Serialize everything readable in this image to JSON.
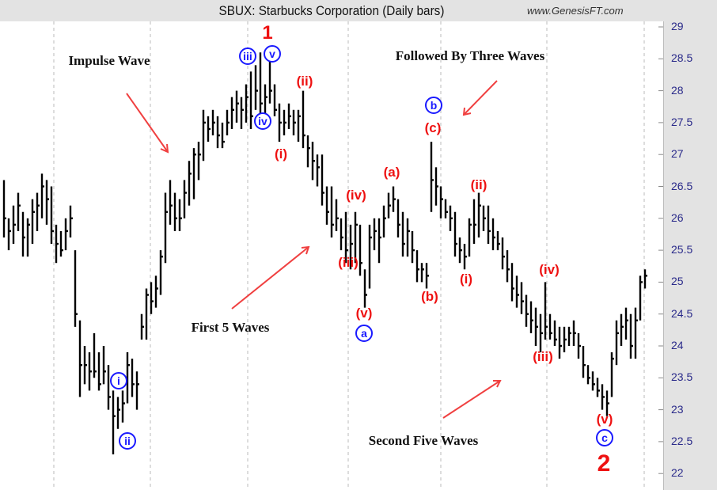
{
  "header": {
    "title": "SBUX:  Starbucks Corporation  (Daily bars)",
    "watermark": "www.GenesisFT.com"
  },
  "chart_data": {
    "type": "bar",
    "style": "high-low-close bars",
    "title": "SBUX:  Starbucks Corporation  (Daily bars)",
    "ylim": [
      22,
      29
    ],
    "yticks": [
      "29",
      "28.5",
      "28",
      "27.5",
      "27",
      "26.5",
      "26",
      "25.5",
      "25",
      "24.5",
      "24",
      "23.5",
      "23",
      "22.5",
      "22"
    ],
    "grid": "vertical dashed",
    "bars": [
      [
        26.6,
        25.7,
        26.0
      ],
      [
        26.0,
        25.5,
        25.8
      ],
      [
        26.2,
        25.6,
        25.9
      ],
      [
        26.4,
        25.8,
        26.2
      ],
      [
        26.1,
        25.4,
        25.7
      ],
      [
        26.0,
        25.4,
        25.9
      ],
      [
        26.3,
        25.6,
        26.1
      ],
      [
        26.4,
        25.8,
        26.2
      ],
      [
        26.7,
        26.0,
        26.5
      ],
      [
        26.6,
        25.9,
        26.3
      ],
      [
        26.5,
        25.6,
        25.8
      ],
      [
        25.9,
        25.3,
        25.6
      ],
      [
        25.8,
        25.4,
        25.5
      ],
      [
        26.0,
        25.5,
        25.8
      ],
      [
        26.2,
        25.7,
        26.0
      ],
      [
        25.5,
        24.3,
        24.5
      ],
      [
        24.4,
        23.2,
        23.7
      ],
      [
        24.0,
        23.4,
        23.7
      ],
      [
        23.9,
        23.3,
        23.6
      ],
      [
        24.2,
        23.5,
        23.6
      ],
      [
        23.9,
        23.3,
        23.4
      ],
      [
        24.0,
        23.4,
        23.6
      ],
      [
        23.7,
        23.0,
        23.2
      ],
      [
        23.3,
        22.3,
        22.9
      ],
      [
        23.2,
        22.7,
        23.0
      ],
      [
        23.3,
        22.8,
        23.1
      ],
      [
        23.9,
        23.1,
        23.7
      ],
      [
        23.8,
        23.2,
        23.4
      ],
      [
        23.6,
        23.0,
        23.4
      ],
      [
        24.5,
        24.1,
        24.3
      ],
      [
        24.9,
        24.1,
        24.8
      ],
      [
        25.0,
        24.5,
        24.7
      ],
      [
        25.1,
        24.6,
        24.9
      ],
      [
        25.5,
        24.8,
        25.4
      ],
      [
        26.4,
        25.3,
        26.1
      ],
      [
        26.6,
        25.9,
        26.2
      ],
      [
        26.4,
        25.8,
        26.0
      ],
      [
        26.3,
        25.8,
        26.0
      ],
      [
        26.6,
        26.0,
        26.4
      ],
      [
        26.9,
        26.2,
        26.7
      ],
      [
        27.1,
        26.3,
        27.0
      ],
      [
        27.2,
        26.6,
        27.0
      ],
      [
        27.7,
        26.9,
        27.5
      ],
      [
        27.6,
        27.2,
        27.4
      ],
      [
        27.7,
        27.3,
        27.5
      ],
      [
        27.6,
        27.1,
        27.3
      ],
      [
        27.5,
        27.1,
        27.2
      ],
      [
        27.7,
        27.3,
        27.5
      ],
      [
        27.9,
        27.4,
        27.7
      ],
      [
        28.0,
        27.5,
        27.8
      ],
      [
        27.9,
        27.4,
        27.7
      ],
      [
        28.1,
        27.5,
        27.9
      ],
      [
        28.3,
        27.4,
        27.6
      ],
      [
        28.4,
        27.7,
        28.0
      ],
      [
        28.6,
        27.5,
        27.8
      ],
      [
        28.1,
        27.6,
        27.9
      ],
      [
        28.5,
        27.8,
        28.0
      ],
      [
        28.1,
        27.6,
        27.7
      ],
      [
        27.8,
        27.2,
        27.5
      ],
      [
        27.7,
        27.3,
        27.5
      ],
      [
        27.8,
        27.4,
        27.6
      ],
      [
        27.7,
        27.3,
        27.5
      ],
      [
        27.7,
        27.2,
        27.6
      ],
      [
        28.0,
        27.1,
        27.3
      ],
      [
        27.3,
        26.8,
        27.1
      ],
      [
        27.2,
        26.6,
        26.9
      ],
      [
        27.0,
        26.5,
        26.8
      ],
      [
        27.0,
        26.2,
        26.4
      ],
      [
        26.5,
        25.9,
        26.1
      ],
      [
        26.5,
        25.7,
        25.9
      ],
      [
        26.3,
        25.8,
        26.0
      ],
      [
        26.0,
        25.5,
        25.7
      ],
      [
        26.1,
        25.3,
        25.5
      ],
      [
        25.9,
        25.2,
        25.6
      ],
      [
        26.1,
        25.3,
        25.9
      ],
      [
        25.9,
        25.1,
        25.3
      ],
      [
        25.2,
        24.6,
        24.8
      ],
      [
        25.9,
        24.9,
        25.7
      ],
      [
        26.0,
        25.5,
        25.8
      ],
      [
        26.0,
        25.3,
        25.7
      ],
      [
        26.2,
        25.7,
        26.0
      ],
      [
        26.4,
        26.0,
        26.2
      ],
      [
        26.5,
        26.1,
        26.3
      ],
      [
        26.3,
        25.7,
        25.9
      ],
      [
        26.1,
        25.4,
        25.6
      ],
      [
        26.0,
        25.4,
        25.8
      ],
      [
        25.8,
        25.3,
        25.5
      ],
      [
        25.5,
        25.0,
        25.2
      ],
      [
        25.3,
        25.0,
        25.2
      ],
      [
        25.3,
        24.9,
        25.1
      ],
      [
        27.2,
        26.1,
        26.6
      ],
      [
        26.8,
        26.2,
        26.5
      ],
      [
        26.5,
        26.0,
        26.3
      ],
      [
        26.3,
        26.0,
        26.1
      ],
      [
        26.2,
        25.8,
        26.0
      ],
      [
        26.1,
        25.4,
        25.6
      ],
      [
        25.7,
        25.3,
        25.5
      ],
      [
        25.6,
        25.2,
        25.4
      ],
      [
        26.0,
        25.4,
        25.9
      ],
      [
        26.3,
        25.6,
        25.9
      ],
      [
        26.4,
        25.7,
        26.2
      ],
      [
        26.2,
        25.8,
        26.0
      ],
      [
        26.2,
        25.6,
        25.8
      ],
      [
        26.0,
        25.5,
        25.7
      ],
      [
        25.8,
        25.5,
        25.6
      ],
      [
        25.7,
        25.2,
        25.4
      ],
      [
        25.5,
        25.0,
        25.2
      ],
      [
        25.3,
        24.7,
        24.9
      ],
      [
        25.1,
        24.6,
        24.8
      ],
      [
        25.0,
        24.5,
        24.7
      ],
      [
        24.8,
        24.3,
        24.5
      ],
      [
        24.7,
        24.2,
        24.4
      ],
      [
        24.6,
        24.0,
        24.3
      ],
      [
        24.5,
        23.9,
        24.2
      ],
      [
        25.0,
        24.1,
        24.3
      ],
      [
        24.5,
        24.1,
        24.2
      ],
      [
        24.4,
        24.0,
        24.1
      ],
      [
        24.3,
        23.8,
        24.0
      ],
      [
        24.3,
        23.9,
        24.1
      ],
      [
        24.3,
        24.0,
        24.2
      ],
      [
        24.4,
        24.0,
        24.2
      ],
      [
        24.2,
        23.8,
        24.0
      ],
      [
        24.0,
        23.5,
        23.7
      ],
      [
        23.7,
        23.4,
        23.5
      ],
      [
        23.6,
        23.3,
        23.4
      ],
      [
        23.5,
        23.2,
        23.3
      ],
      [
        23.4,
        23.0,
        23.2
      ],
      [
        23.3,
        22.9,
        23.1
      ],
      [
        23.9,
        23.2,
        23.8
      ],
      [
        24.4,
        23.7,
        24.2
      ],
      [
        24.5,
        24.0,
        24.3
      ],
      [
        24.6,
        24.1,
        24.4
      ],
      [
        24.5,
        23.8,
        24.0
      ],
      [
        24.6,
        23.8,
        24.4
      ],
      [
        25.1,
        24.4,
        25.0
      ],
      [
        25.2,
        24.9,
        25.1
      ]
    ],
    "annotations": {
      "wave1": "1",
      "wave2": "2",
      "minor_iii": "iii",
      "minor_v": "v",
      "minor_iv": "iv",
      "minor_i": "i",
      "minor_ii": "ii",
      "top_ii": "(ii)",
      "top_i": "(i)",
      "fall_iv": "(iv)",
      "fall_iii": "(iii)",
      "fall_v": "(v)",
      "circ_a": "a",
      "paren_a": "(a)",
      "paren_b": "(b)",
      "paren_c": "(c)",
      "circ_b": "b",
      "sec_ii": "(ii)",
      "sec_i": "(i)",
      "sec_iv": "(iv)",
      "sec_iii": "(iii)",
      "sec_v": "(v)",
      "circ_c": "c",
      "impulse": "Impulse Wave",
      "followed": "Followed By Three Waves",
      "first5": "First 5 Waves",
      "second5": "Second Five Waves"
    },
    "colors": {
      "bars": "#000000",
      "labels_red": "#ee1111",
      "labels_blue": "#1a1aff",
      "arrows": "#f04040"
    }
  }
}
